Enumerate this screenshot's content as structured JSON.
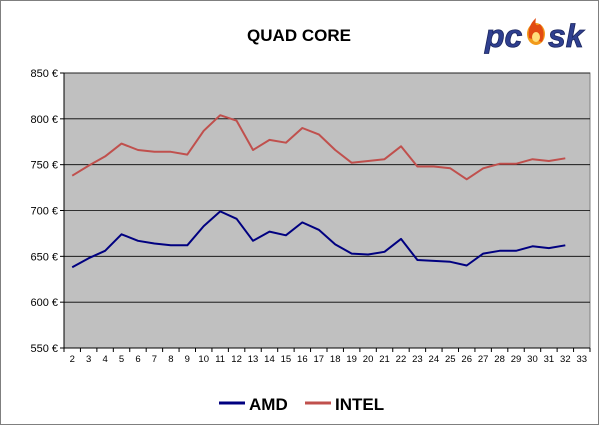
{
  "chart_data": {
    "type": "line",
    "title": "QUAD CORE",
    "logo_text": "pcesk",
    "x": [
      2,
      3,
      4,
      5,
      6,
      7,
      8,
      9,
      10,
      11,
      12,
      13,
      14,
      15,
      16,
      17,
      18,
      19,
      20,
      21,
      22,
      23,
      24,
      25,
      26,
      27,
      28,
      29,
      30,
      31,
      32
    ],
    "xticks": [
      2,
      3,
      4,
      5,
      6,
      7,
      8,
      9,
      10,
      11,
      12,
      13,
      14,
      15,
      16,
      17,
      18,
      19,
      20,
      21,
      22,
      23,
      24,
      25,
      26,
      27,
      28,
      29,
      30,
      31,
      32,
      33
    ],
    "xlim": [
      1.5,
      33.5
    ],
    "ylim": [
      550,
      850
    ],
    "yticks": [
      550,
      600,
      650,
      700,
      750,
      800,
      850
    ],
    "ytick_labels": [
      "550 €",
      "600 €",
      "650 €",
      "700 €",
      "750 €",
      "800 €",
      "850 €"
    ],
    "grid": true,
    "legend_position": "bottom-center",
    "plot_bg": "#c0c0c0",
    "series": [
      {
        "name": "AMD",
        "color": "#000080",
        "values": [
          638,
          648,
          656,
          674,
          667,
          664,
          662,
          662,
          683,
          699,
          691,
          667,
          677,
          673,
          687,
          679,
          663,
          653,
          652,
          655,
          669,
          646,
          645,
          644,
          640,
          653,
          656,
          656,
          661,
          659,
          662
        ]
      },
      {
        "name": "INTEL",
        "color": "#c0504d",
        "values": [
          738,
          749,
          759,
          773,
          766,
          764,
          764,
          761,
          787,
          804,
          798,
          766,
          777,
          774,
          790,
          783,
          766,
          752,
          754,
          756,
          770,
          748,
          748,
          746,
          734,
          746,
          751,
          751,
          756,
          754,
          757
        ]
      }
    ]
  }
}
